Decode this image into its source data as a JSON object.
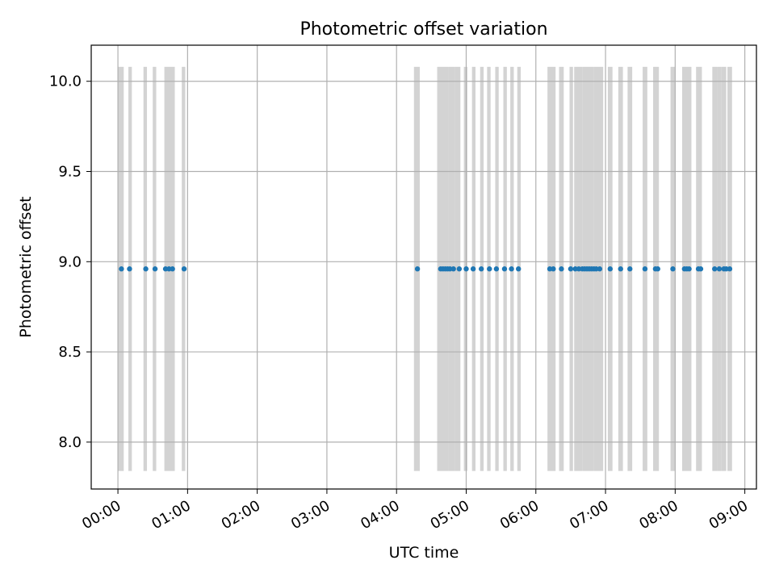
{
  "chart_data": {
    "type": "scatter",
    "title": "Photometric offset variation",
    "xlabel": "UTC time",
    "ylabel": "Photometric offset",
    "x_unit": "HH:MM",
    "xlim": [
      "-00:23",
      "09:10"
    ],
    "ylim": [
      7.74,
      10.2
    ],
    "x_ticks": [
      "00:00",
      "01:00",
      "02:00",
      "03:00",
      "04:00",
      "05:00",
      "06:00",
      "07:00",
      "08:00",
      "09:00"
    ],
    "y_ticks": [
      "8.0",
      "8.5",
      "9.0",
      "9.5",
      "10.0"
    ],
    "grid": true,
    "point_color": "#1f77b4",
    "band_color": "#d3d3d3",
    "bands": {
      "y_range": [
        7.84,
        10.08
      ],
      "intervals": [
        [
          "00:00",
          "00:05"
        ],
        [
          "00:09",
          "00:12"
        ],
        [
          "00:22",
          "00:25"
        ],
        [
          "00:30",
          "00:33"
        ],
        [
          "00:40",
          "00:49"
        ],
        [
          "00:55",
          "00:58"
        ],
        [
          "04:15",
          "04:20"
        ],
        [
          "04:35",
          "04:45"
        ],
        [
          "04:45",
          "04:50"
        ],
        [
          "04:50",
          "04:55"
        ],
        [
          "04:58",
          "05:01"
        ],
        [
          "05:05",
          "05:08"
        ],
        [
          "05:12",
          "05:15"
        ],
        [
          "05:18",
          "05:21"
        ],
        [
          "05:25",
          "05:28"
        ],
        [
          "05:32",
          "05:35"
        ],
        [
          "05:38",
          "05:41"
        ],
        [
          "05:44",
          "05:47"
        ],
        [
          "06:10",
          "06:17"
        ],
        [
          "06:20",
          "06:24"
        ],
        [
          "06:29",
          "06:32"
        ],
        [
          "06:33",
          "06:40"
        ],
        [
          "06:40",
          "06:50"
        ],
        [
          "06:50",
          "06:58"
        ],
        [
          "07:02",
          "07:06"
        ],
        [
          "07:11",
          "07:15"
        ],
        [
          "07:19",
          "07:23"
        ],
        [
          "07:32",
          "07:36"
        ],
        [
          "07:41",
          "07:46"
        ],
        [
          "07:56",
          "08:00"
        ],
        [
          "08:06",
          "08:14"
        ],
        [
          "08:18",
          "08:23"
        ],
        [
          "08:32",
          "08:36"
        ],
        [
          "08:36",
          "08:40"
        ],
        [
          "08:40",
          "08:44"
        ],
        [
          "08:45",
          "08:49"
        ]
      ]
    },
    "series": [
      {
        "y": 8.96,
        "x": [
          "00:03",
          "00:10",
          "00:24",
          "00:32",
          "00:41",
          "00:44",
          "00:47",
          "00:57",
          "04:18",
          "04:38",
          "04:40",
          "04:42",
          "04:44",
          "04:46",
          "04:49",
          "04:54",
          "04:60",
          "05:06",
          "05:13",
          "05:20",
          "05:26",
          "05:33",
          "05:39",
          "05:45",
          "06:12",
          "06:15",
          "06:22",
          "06:30",
          "06:34",
          "06:37",
          "06:40",
          "06:42",
          "06:44",
          "06:46",
          "06:48",
          "06:50",
          "06:52",
          "06:55",
          "07:04",
          "07:13",
          "07:21",
          "07:34",
          "07:43",
          "07:45",
          "07:58",
          "08:08",
          "08:10",
          "08:12",
          "08:20",
          "08:22",
          "08:34",
          "08:38",
          "08:42",
          "08:44",
          "08:47"
        ]
      }
    ]
  }
}
